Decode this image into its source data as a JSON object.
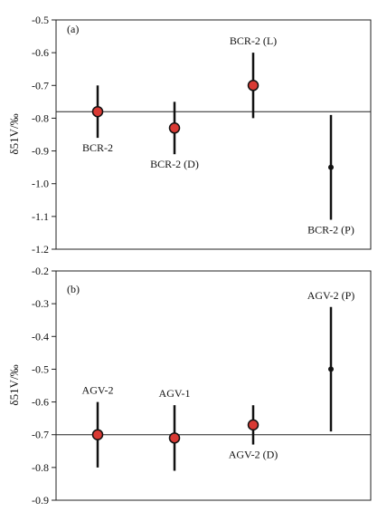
{
  "chart_data": [
    {
      "type": "scatter",
      "panel_label": "(a)",
      "ylabel": "δ51V/‰",
      "ylim": [
        -1.2,
        -0.5
      ],
      "yticks": [
        -0.5,
        -0.6,
        -0.7,
        -0.8,
        -0.9,
        -1.0,
        -1.1,
        -1.2
      ],
      "ytick_labels": [
        "-0.5",
        "-0.6",
        "-0.7",
        "-0.8",
        "-0.9",
        "-1.0",
        "-1.1",
        "-1.2"
      ],
      "reference_line": -0.78,
      "points": [
        {
          "label": "BCR-2",
          "y": -0.78,
          "err_low": -0.86,
          "err_high": -0.7,
          "marker": "filled",
          "label_pos": "below"
        },
        {
          "label": "BCR-2 (D)",
          "y": -0.83,
          "err_low": -0.91,
          "err_high": -0.75,
          "marker": "filled",
          "label_pos": "below"
        },
        {
          "label": "BCR-2 (L)",
          "y": -0.7,
          "err_low": -0.8,
          "err_high": -0.6,
          "marker": "filled",
          "label_pos": "above"
        },
        {
          "label": "BCR-2 (P)",
          "y": -0.95,
          "err_low": -1.11,
          "err_high": -0.79,
          "marker": "small",
          "label_pos": "below"
        }
      ],
      "marker_color": "#d93a34"
    },
    {
      "type": "scatter",
      "panel_label": "(b)",
      "ylabel": "δ51V/‰",
      "ylim": [
        -0.9,
        -0.2
      ],
      "yticks": [
        -0.2,
        -0.3,
        -0.4,
        -0.5,
        -0.6,
        -0.7,
        -0.8,
        -0.9
      ],
      "ytick_labels": [
        "-0.2",
        "-0.3",
        "-0.4",
        "-0.5",
        "-0.6",
        "-0.7",
        "-0.8",
        "-0.9"
      ],
      "reference_line": -0.7,
      "points": [
        {
          "label": "AGV-2",
          "y": -0.7,
          "err_low": -0.8,
          "err_high": -0.6,
          "marker": "filled",
          "label_pos": "above"
        },
        {
          "label": "AGV-1",
          "y": -0.71,
          "err_low": -0.81,
          "err_high": -0.61,
          "marker": "filled",
          "label_pos": "above"
        },
        {
          "label": "AGV-2 (D)",
          "y": -0.67,
          "err_low": -0.73,
          "err_high": -0.61,
          "marker": "filled",
          "label_pos": "below"
        },
        {
          "label": "AGV-2 (P)",
          "y": -0.5,
          "err_low": -0.69,
          "err_high": -0.31,
          "marker": "small",
          "label_pos": "above"
        }
      ],
      "marker_color": "#d93a34"
    }
  ]
}
